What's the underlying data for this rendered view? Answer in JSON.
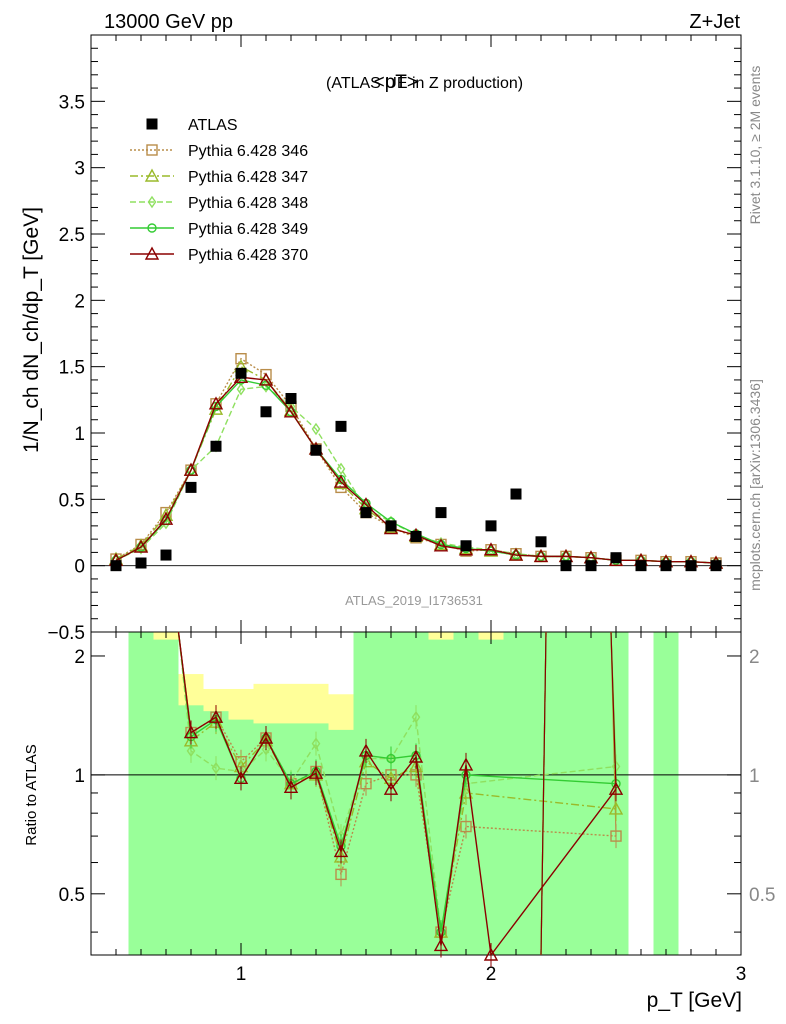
{
  "header": {
    "left": "13000 GeV pp",
    "right": "Z+Jet"
  },
  "side_labels": {
    "top": "Rivet 3.1.10, ≥ 2M events",
    "bottom": "mcplots.cern.ch [arXiv:1306.3436]"
  },
  "watermark": "ATLAS_2019_I1736531",
  "chart_data": {
    "type": "line",
    "title": "<pT>",
    "subtitle": "(ATLAS UE in Z production)",
    "ylabel_main": "1/N_ch dN_ch/dp_T [GeV]",
    "ylabel_ratio": "Ratio to ATLAS",
    "xlabel": "p_T [GeV]",
    "xlim": [
      0.4,
      3.0
    ],
    "ylim_main": [
      -0.5,
      4.0
    ],
    "ylim_ratio": [
      0.35,
      2.3
    ],
    "x_ticks": [
      1,
      2,
      3
    ],
    "y_ticks_main": [
      -0.5,
      0,
      0.5,
      1,
      1.5,
      2,
      2.5,
      3,
      3.5
    ],
    "y_ticks_ratio": [
      0.5,
      1,
      2
    ],
    "data": {
      "name": "ATLAS",
      "x": [
        0.5,
        0.6,
        0.7,
        0.8,
        0.9,
        1.0,
        1.1,
        1.2,
        1.3,
        1.4,
        1.5,
        1.6,
        1.7,
        1.8,
        1.9,
        2.0,
        2.1,
        2.2,
        2.3,
        2.4,
        2.5,
        2.6,
        2.7,
        2.8,
        2.9
      ],
      "y": [
        0.0,
        0.02,
        0.08,
        0.59,
        0.9,
        1.45,
        1.16,
        1.26,
        0.87,
        1.05,
        0.4,
        0.3,
        0.22,
        0.4,
        0.15,
        0.3,
        0.54,
        0.18,
        0.0,
        0.0,
        0.06,
        0.0,
        0.0,
        0.0,
        0.0
      ]
    },
    "series": [
      {
        "name": "Pythia 6.428 346",
        "color": "#b98d4a",
        "marker": "square",
        "dash": "2,2",
        "x": [
          0.5,
          0.6,
          0.7,
          0.8,
          0.9,
          1.0,
          1.1,
          1.2,
          1.3,
          1.4,
          1.5,
          1.6,
          1.7,
          1.8,
          1.9,
          2.0,
          2.1,
          2.2,
          2.3,
          2.4,
          2.5,
          2.6,
          2.7,
          2.8,
          2.9
        ],
        "y": [
          0.05,
          0.16,
          0.4,
          0.72,
          1.22,
          1.56,
          1.44,
          1.2,
          0.88,
          0.59,
          0.4,
          0.29,
          0.21,
          0.16,
          0.11,
          0.12,
          0.09,
          0.07,
          0.07,
          0.06,
          0.04,
          0.04,
          0.03,
          0.03,
          0.02
        ],
        "ratio_x": [
          0.8,
          0.9,
          1.0,
          1.1,
          1.2,
          1.3,
          1.4,
          1.5,
          1.6,
          1.7,
          1.8,
          1.9,
          2.5
        ],
        "ratio_y": [
          1.28,
          1.4,
          1.08,
          1.24,
          0.95,
          1.02,
          0.56,
          0.95,
          1.0,
          1.0,
          0.4,
          0.74,
          0.7
        ]
      },
      {
        "name": "Pythia 6.428 347",
        "color": "#9aba2a",
        "marker": "triangle",
        "dash": "8,3,2,3",
        "x": [
          0.5,
          0.6,
          0.7,
          0.8,
          0.9,
          1.0,
          1.1,
          1.2,
          1.3,
          1.4,
          1.5,
          1.6,
          1.7,
          1.8,
          1.9,
          2.0,
          2.1,
          2.2,
          2.3,
          2.4,
          2.5,
          2.6,
          2.7,
          2.8,
          2.9
        ],
        "y": [
          0.05,
          0.15,
          0.38,
          0.72,
          1.18,
          1.5,
          1.4,
          1.17,
          0.88,
          0.62,
          0.43,
          0.29,
          0.22,
          0.16,
          0.13,
          0.11,
          0.08,
          0.07,
          0.07,
          0.06,
          0.04,
          0.04,
          0.03,
          0.03,
          0.02
        ],
        "ratio_x": [
          0.8,
          0.9,
          1.0,
          1.1,
          1.2,
          1.3,
          1.4,
          1.5,
          1.6,
          1.7,
          1.8,
          1.9,
          2.5
        ],
        "ratio_y": [
          1.22,
          1.36,
          1.05,
          1.22,
          0.95,
          1.0,
          0.62,
          1.08,
          0.98,
          1.05,
          0.4,
          0.9,
          0.82
        ]
      },
      {
        "name": "Pythia 6.428 348",
        "color": "#8fe060",
        "marker": "diamond",
        "dash": "6,3",
        "x": [
          0.5,
          0.6,
          0.7,
          0.8,
          0.9,
          1.0,
          1.1,
          1.2,
          1.3,
          1.4,
          1.5,
          1.6,
          1.7,
          1.8,
          1.9,
          2.0,
          2.1,
          2.2,
          2.3,
          2.4,
          2.5,
          2.6,
          2.7,
          2.8,
          2.9
        ],
        "y": [
          0.04,
          0.13,
          0.32,
          0.72,
          0.9,
          1.33,
          1.35,
          1.2,
          1.03,
          0.73,
          0.43,
          0.33,
          0.23,
          0.17,
          0.14,
          0.12,
          0.09,
          0.07,
          0.07,
          0.06,
          0.04,
          0.04,
          0.03,
          0.03,
          0.02
        ],
        "ratio_x": [
          0.8,
          0.9,
          1.0,
          1.1,
          1.2,
          1.3,
          1.4,
          1.5,
          1.6,
          1.7,
          1.8,
          1.9,
          2.5
        ],
        "ratio_y": [
          1.15,
          1.04,
          1.02,
          1.16,
          0.96,
          1.2,
          0.7,
          1.1,
          1.1,
          1.4,
          0.4,
          0.95,
          1.05
        ]
      },
      {
        "name": "Pythia 6.428 349",
        "color": "#33cc33",
        "marker": "circle",
        "dash": "",
        "x": [
          0.5,
          0.6,
          0.7,
          0.8,
          0.9,
          1.0,
          1.1,
          1.2,
          1.3,
          1.4,
          1.5,
          1.6,
          1.7,
          1.8,
          1.9,
          2.0,
          2.1,
          2.2,
          2.3,
          2.4,
          2.5,
          2.6,
          2.7,
          2.8,
          2.9
        ],
        "y": [
          0.04,
          0.14,
          0.34,
          0.72,
          1.2,
          1.4,
          1.36,
          1.16,
          0.88,
          0.65,
          0.47,
          0.33,
          0.24,
          0.16,
          0.13,
          0.11,
          0.08,
          0.07,
          0.07,
          0.06,
          0.04,
          0.04,
          0.03,
          0.03,
          0.02
        ],
        "ratio_x": [
          0.8,
          0.9,
          1.0,
          1.1,
          1.2,
          1.3,
          1.4,
          1.5,
          1.6,
          1.7,
          1.8,
          1.9,
          2.5
        ],
        "ratio_y": [
          1.25,
          1.38,
          0.98,
          1.24,
          0.95,
          1.02,
          0.66,
          1.12,
          1.1,
          1.12,
          0.4,
          1.0,
          0.95
        ]
      },
      {
        "name": "Pythia 6.428 370",
        "color": "#8b0000",
        "marker": "triangle",
        "dash": "",
        "x": [
          0.5,
          0.6,
          0.7,
          0.8,
          0.9,
          1.0,
          1.1,
          1.2,
          1.3,
          1.4,
          1.5,
          1.6,
          1.7,
          1.8,
          1.9,
          2.0,
          2.1,
          2.2,
          2.3,
          2.4,
          2.5,
          2.6,
          2.7,
          2.8,
          2.9
        ],
        "y": [
          0.04,
          0.14,
          0.35,
          0.72,
          1.22,
          1.42,
          1.4,
          1.16,
          0.88,
          0.63,
          0.46,
          0.28,
          0.23,
          0.15,
          0.12,
          0.12,
          0.08,
          0.07,
          0.07,
          0.06,
          0.04,
          0.04,
          0.03,
          0.03,
          0.02
        ],
        "ratio_x": [
          0.8,
          0.9,
          1.0,
          1.1,
          1.2,
          1.3,
          1.4,
          1.5,
          1.6,
          1.7,
          1.8,
          1.9,
          2.0,
          2.5
        ],
        "ratio_y": [
          1.28,
          1.4,
          0.98,
          1.24,
          0.93,
          1.01,
          0.64,
          1.15,
          0.92,
          1.11,
          0.37,
          1.06,
          0.35,
          0.92
        ]
      }
    ],
    "ratio_bands": {
      "x_edges": [
        0.55,
        0.65,
        0.75,
        0.85,
        0.95,
        1.05,
        1.15,
        1.25,
        1.35,
        1.45,
        1.55,
        1.65,
        1.75,
        1.85,
        1.95,
        2.05,
        2.15,
        2.25,
        2.35,
        2.45,
        2.55,
        2.65,
        2.75
      ],
      "green": [
        [
          0.35,
          2.3
        ],
        [
          0.35,
          2.2
        ],
        [
          0.35,
          1.5
        ],
        [
          0.35,
          1.45
        ],
        [
          0.35,
          1.38
        ],
        [
          0.35,
          1.35
        ],
        [
          0.35,
          1.35
        ],
        [
          0.35,
          1.35
        ],
        [
          0.35,
          1.3
        ],
        [
          0.35,
          2.3
        ],
        [
          0.35,
          2.3
        ],
        [
          0.35,
          2.3
        ],
        [
          0.35,
          2.2
        ],
        [
          0.35,
          2.3
        ],
        [
          0.35,
          2.2
        ],
        [
          0.35,
          2.3
        ],
        [
          0.35,
          2.3
        ],
        [
          0.35,
          2.3
        ],
        [
          0.35,
          2.3
        ],
        [
          0.35,
          2.3
        ],
        [
          null,
          null
        ],
        [
          0.35,
          2.3
        ],
        [
          null,
          null
        ]
      ],
      "yellow": [
        [
          0.35,
          2.3
        ],
        [
          0.35,
          2.3
        ],
        [
          0.35,
          1.8
        ],
        [
          0.35,
          1.65
        ],
        [
          0.35,
          1.65
        ],
        [
          0.35,
          1.7
        ],
        [
          0.35,
          1.7
        ],
        [
          0.35,
          1.7
        ],
        [
          0.35,
          1.6
        ],
        [
          0.35,
          2.3
        ],
        [
          0.35,
          2.3
        ],
        [
          0.35,
          2.3
        ],
        [
          0.35,
          2.3
        ],
        [
          0.35,
          2.3
        ],
        [
          0.35,
          2.3
        ],
        [
          0.35,
          2.3
        ],
        [
          0.35,
          2.3
        ],
        [
          0.35,
          2.3
        ],
        [
          0.35,
          2.3
        ],
        [
          0.35,
          2.3
        ],
        [
          null,
          null
        ],
        [
          0.35,
          2.3
        ],
        [
          null,
          null
        ]
      ]
    }
  }
}
